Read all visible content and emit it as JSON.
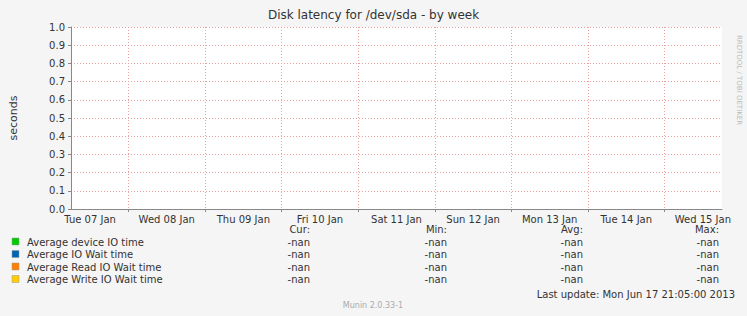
{
  "chart_data": {
    "type": "line",
    "title": "Disk latency for /dev/sda - by week",
    "y_label": "seconds",
    "categories": [
      null,
      "Tue 07 Jan",
      null,
      null,
      null,
      "Wed 08 Jan",
      null,
      null,
      null,
      "Thu 09 Jan",
      null,
      null,
      null,
      "Fri 10 Jan",
      null,
      null,
      null,
      "Sat 11 Jan",
      null,
      null,
      null,
      "Sun 12 Jan",
      null,
      null,
      null,
      "Mon 13 Jan",
      null,
      null,
      null,
      "Tue 14 Jan",
      null,
      null,
      null,
      "Wed 15 Jan",
      null
    ],
    "series": [
      {
        "name": "Average device IO time",
        "color": "#00cc00",
        "values": [
          null,
          null,
          null,
          null,
          null,
          null,
          null,
          null,
          null,
          null,
          null,
          null,
          null,
          null,
          null,
          null,
          null,
          null,
          null,
          null,
          null,
          null,
          null,
          null,
          null,
          null,
          null,
          null,
          null,
          null,
          null,
          null,
          null,
          null,
          null
        ],
        "cur": "-nan",
        "min": "-nan",
        "avg": "-nan",
        "max": "-nan"
      },
      {
        "name": "Average IO Wait time",
        "color": "#0066b3",
        "values": [
          null,
          null,
          null,
          null,
          null,
          null,
          null,
          null,
          null,
          null,
          null,
          null,
          null,
          null,
          null,
          null,
          null,
          null,
          null,
          null,
          null,
          null,
          null,
          null,
          null,
          null,
          null,
          null,
          null,
          null,
          null,
          null,
          null,
          null,
          null
        ],
        "cur": "-nan",
        "min": "-nan",
        "avg": "-nan",
        "max": "-nan"
      },
      {
        "name": "Average Read IO Wait time",
        "color": "#ff8000",
        "values": [
          null,
          null,
          null,
          null,
          null,
          null,
          null,
          null,
          null,
          null,
          null,
          null,
          null,
          null,
          null,
          null,
          null,
          null,
          null,
          null,
          null,
          null,
          null,
          null,
          null,
          null,
          null,
          null,
          null,
          null,
          null,
          null,
          null,
          null,
          null
        ],
        "cur": "-nan",
        "min": "-nan",
        "avg": "-nan",
        "max": "-nan"
      },
      {
        "name": "Average Write IO Wait time",
        "color": "#ffcc00",
        "values": [
          null,
          null,
          null,
          null,
          null,
          null,
          null,
          null,
          null,
          null,
          null,
          null,
          null,
          null,
          null,
          null,
          null,
          null,
          null,
          null,
          null,
          null,
          null,
          null,
          null,
          null,
          null,
          null,
          null,
          null,
          null,
          null,
          null,
          null,
          null
        ],
        "cur": "-nan",
        "min": "-nan",
        "avg": "-nan",
        "max": "-nan"
      }
    ],
    "stats_headers": [
      "Cur:",
      "Min:",
      "Avg:",
      "Max:"
    ],
    "ylim": [
      0,
      1
    ],
    "yticks": [
      {
        "value": 0,
        "label": "0.0"
      },
      0.1,
      0.2,
      0.3,
      0.4,
      0.5,
      0.6,
      0.7,
      0.8,
      0.9,
      {
        "value": 1,
        "label": "1.0"
      }
    ],
    "grid": true,
    "legend": "bottom",
    "last_update": "Last update: Mon Jun 17 21:05:00 2013",
    "footer": "Munin 2.0.33-1",
    "watermark": "RRDTOOL / TOBI OETIKER"
  }
}
